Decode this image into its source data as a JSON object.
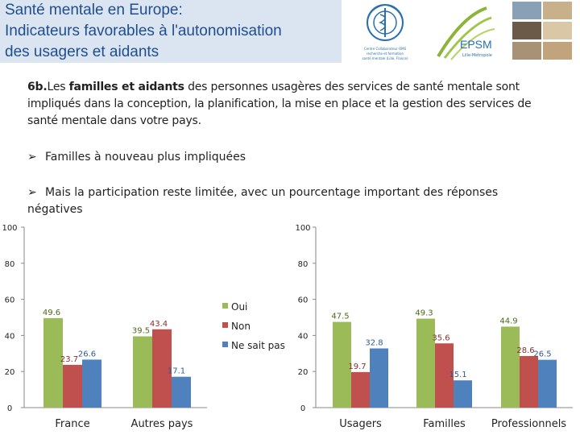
{
  "header": {
    "title_line1": "Santé mentale en Europe:",
    "title_line2": "Indicateurs favorables à l'autonomisation",
    "title_line3": "des usagers et aidants"
  },
  "logos": {
    "who_text": "Centre Collaborateur OMS pour la recherche et la formation en santé mentale (Lille, France)",
    "epsm_text": "EPSM",
    "epsm_sub": "Lille-Métropole"
  },
  "question": {
    "number": "6b.",
    "prefix": "Les ",
    "highlight": "familles et aidants",
    "rest": " des personnes usagères des services de santé mentale sont impliqués dans la conception, la planification, la mise en place et la gestion  des services de santé mentale dans votre pays."
  },
  "bullets": [
    "Familles à nouveau plus impliquées",
    "Mais la participation reste limitée, avec un pourcentage important des réponses négatives"
  ],
  "colors": {
    "oui": "#9bbb59",
    "non": "#c0504d",
    "nsp": "#4f81bd"
  },
  "legend": [
    "Oui",
    "Non",
    "Ne sait pas"
  ],
  "chart_data": [
    {
      "type": "bar",
      "categories": [
        "France",
        "Autres pays"
      ],
      "series": [
        {
          "name": "Oui",
          "values": [
            49.6,
            39.5
          ]
        },
        {
          "name": "Non",
          "values": [
            23.7,
            43.4
          ]
        },
        {
          "name": "Ne sait pas",
          "values": [
            26.6,
            17.1
          ]
        }
      ],
      "ylim": [
        0,
        100
      ],
      "yticks": [
        0,
        20,
        40,
        60,
        80,
        100
      ]
    },
    {
      "type": "bar",
      "categories": [
        "Usagers",
        "Familles",
        "Professionnels"
      ],
      "series": [
        {
          "name": "Oui",
          "values": [
            47.5,
            49.3,
            44.9
          ]
        },
        {
          "name": "Non",
          "values": [
            19.7,
            35.6,
            28.6
          ]
        },
        {
          "name": "Ne sait pas",
          "values": [
            32.8,
            15.1,
            26.5
          ]
        }
      ],
      "ylim": [
        0,
        100
      ],
      "yticks": [
        0,
        20,
        40,
        60,
        80,
        100
      ]
    }
  ]
}
